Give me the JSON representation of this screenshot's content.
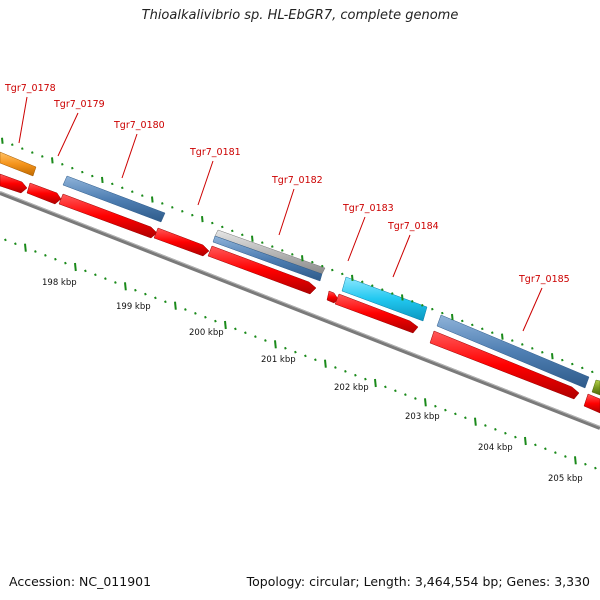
{
  "title": "Thioalkalivibrio sp. HL-EbGR7, complete genome",
  "footer": {
    "accession": "Accession: NC_011901",
    "info": "Topology: circular; Length: 3,464,554 bp; Genes: 3,330"
  },
  "gene_labels": [
    "Tgr7_0178",
    "Tgr7_0179",
    "Tgr7_0180",
    "Tgr7_0181",
    "Tgr7_0182",
    "Tgr7_0183",
    "Tgr7_0184",
    "Tgr7_0185"
  ],
  "scale_labels": [
    "198 kbp",
    "199 kbp",
    "200 kbp",
    "201 kbp",
    "202 kbp",
    "203 kbp",
    "204 kbp",
    "205 kbp"
  ],
  "colors": {
    "cds": "#ff0000",
    "cds_dark": "#b00000",
    "blue": "#4f7fb3",
    "cyan": "#22c8f0",
    "gray": "#b8b8b8",
    "orange": "#f5941c",
    "olive": "#7a9a20",
    "tick": "#1a8a1a",
    "backbone": "#7a7a7a",
    "label": "#cc0000"
  }
}
